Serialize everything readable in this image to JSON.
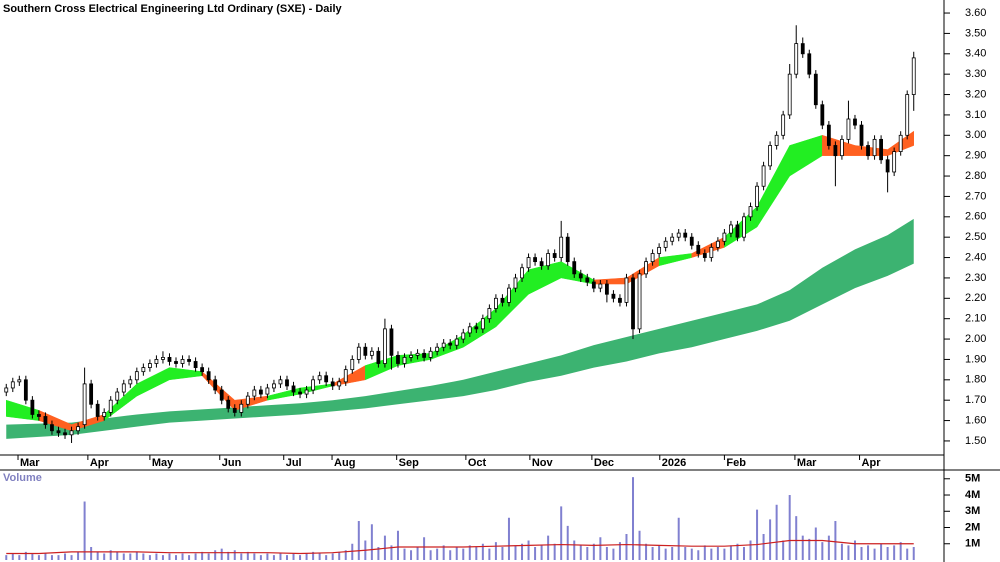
{
  "chart_data": {
    "type": "candlestick",
    "title": "Southern Cross Electrical Engineering Ltd Ordinary (SXE) - Daily",
    "xlim": [
      -0.5,
      139.5
    ],
    "xticks": [
      {
        "value": 1.8,
        "label": "Mar"
      },
      {
        "value": 12.5,
        "label": "Apr"
      },
      {
        "value": 22,
        "label": "May"
      },
      {
        "value": 32.7,
        "label": "Jun"
      },
      {
        "value": 42.5,
        "label": "Jul"
      },
      {
        "value": 49.9,
        "label": "Aug"
      },
      {
        "value": 59.8,
        "label": "Sep"
      },
      {
        "value": 70.4,
        "label": "Oct"
      },
      {
        "value": 80.2,
        "label": "Nov"
      },
      {
        "value": 89.7,
        "label": "Dec"
      },
      {
        "value": 100.1,
        "label": "2026"
      },
      {
        "value": 110,
        "label": "Feb"
      },
      {
        "value": 120.8,
        "label": "Mar"
      },
      {
        "value": 130.7,
        "label": "Apr"
      }
    ],
    "ylim": [
      1.431,
      3.664
    ],
    "yticks": [
      {
        "value": 1.5,
        "label": "1.50"
      },
      {
        "value": 1.6,
        "label": "1.60"
      },
      {
        "value": 1.7,
        "label": "1.70"
      },
      {
        "value": 1.8,
        "label": "1.80"
      },
      {
        "value": 1.9,
        "label": "1.90"
      },
      {
        "value": 2.0,
        "label": "2.00"
      },
      {
        "value": 2.1,
        "label": "2.10"
      },
      {
        "value": 2.2,
        "label": "2.20"
      },
      {
        "value": 2.3,
        "label": "2.30"
      },
      {
        "value": 2.4,
        "label": "2.40"
      },
      {
        "value": 2.5,
        "label": "2.50"
      },
      {
        "value": 2.6,
        "label": "2.60"
      },
      {
        "value": 2.7,
        "label": "2.70"
      },
      {
        "value": 2.8,
        "label": "2.80"
      },
      {
        "value": 2.9,
        "label": "2.90"
      },
      {
        "value": 3.0,
        "label": "3.00"
      },
      {
        "value": 3.1,
        "label": "3.10"
      },
      {
        "value": 3.2,
        "label": "3.20"
      },
      {
        "value": 3.3,
        "label": "3.30"
      },
      {
        "value": 3.4,
        "label": "3.40"
      },
      {
        "value": 3.5,
        "label": "3.50"
      },
      {
        "value": 3.6,
        "label": "3.60"
      }
    ],
    "up_color": "#ffffff",
    "down_color": "#000000",
    "candles": {
      "open": [
        1.74,
        1.76,
        1.79,
        1.8,
        1.7,
        1.63,
        1.62,
        1.58,
        1.55,
        1.54,
        1.53,
        1.55,
        1.58,
        1.78,
        1.68,
        1.62,
        1.64,
        1.7,
        1.74,
        1.78,
        1.8,
        1.84,
        1.86,
        1.88,
        1.9,
        1.91,
        1.89,
        1.88,
        1.9,
        1.89,
        1.86,
        1.84,
        1.8,
        1.75,
        1.7,
        1.66,
        1.64,
        1.68,
        1.72,
        1.75,
        1.73,
        1.76,
        1.78,
        1.8,
        1.77,
        1.74,
        1.73,
        1.75,
        1.8,
        1.82,
        1.79,
        1.77,
        1.79,
        1.85,
        1.9,
        1.96,
        1.92,
        1.94,
        1.88,
        2.05,
        1.92,
        1.88,
        1.91,
        1.92,
        1.93,
        1.91,
        1.94,
        1.96,
        1.98,
        1.97,
        2.0,
        2.03,
        2.06,
        2.05,
        2.1,
        2.15,
        2.2,
        2.18,
        2.25,
        2.3,
        2.35,
        2.4,
        2.38,
        2.36,
        2.42,
        2.4,
        2.5,
        2.38,
        2.32,
        2.3,
        2.28,
        2.25,
        2.27,
        2.22,
        2.2,
        2.18,
        2.3,
        2.05,
        2.32,
        2.38,
        2.42,
        2.45,
        2.48,
        2.5,
        2.52,
        2.5,
        2.46,
        2.42,
        2.4,
        2.45,
        2.48,
        2.52,
        2.56,
        2.5,
        2.6,
        2.65,
        2.75,
        2.85,
        2.95,
        3.0,
        3.1,
        3.3,
        3.45,
        3.4,
        3.3,
        3.15,
        3.05,
        2.95,
        2.9,
        2.98,
        3.08,
        3.05,
        2.95,
        2.9,
        2.98,
        2.88,
        2.82,
        2.92,
        3.0,
        3.2
      ],
      "high": [
        1.78,
        1.81,
        1.82,
        1.82,
        1.72,
        1.65,
        1.64,
        1.6,
        1.57,
        1.56,
        1.57,
        1.59,
        1.86,
        1.8,
        1.7,
        1.66,
        1.72,
        1.76,
        1.8,
        1.82,
        1.86,
        1.88,
        1.9,
        1.92,
        1.94,
        1.93,
        1.91,
        1.92,
        1.92,
        1.91,
        1.88,
        1.86,
        1.82,
        1.77,
        1.72,
        1.68,
        1.7,
        1.74,
        1.77,
        1.77,
        1.78,
        1.8,
        1.82,
        1.82,
        1.79,
        1.76,
        1.77,
        1.82,
        1.84,
        1.84,
        1.81,
        1.81,
        1.87,
        1.92,
        1.98,
        1.98,
        1.96,
        1.96,
        2.1,
        2.07,
        1.94,
        1.93,
        1.94,
        1.95,
        1.95,
        1.96,
        1.98,
        2.0,
        2.0,
        2.02,
        2.05,
        2.08,
        2.08,
        2.12,
        2.17,
        2.22,
        2.22,
        2.27,
        2.32,
        2.37,
        2.42,
        2.42,
        2.4,
        2.44,
        2.44,
        2.58,
        2.52,
        2.4,
        2.34,
        2.32,
        2.3,
        2.29,
        2.29,
        2.24,
        2.22,
        2.32,
        2.32,
        2.34,
        2.4,
        2.44,
        2.47,
        2.5,
        2.52,
        2.54,
        2.54,
        2.52,
        2.48,
        2.44,
        2.47,
        2.5,
        2.54,
        2.58,
        2.58,
        2.62,
        2.67,
        2.77,
        2.87,
        2.97,
        3.02,
        3.12,
        3.35,
        3.54,
        3.48,
        3.42,
        3.32,
        3.17,
        3.07,
        2.97,
        3.0,
        3.17,
        3.1,
        3.07,
        2.97,
        3.0,
        3.0,
        2.9,
        2.94,
        3.02,
        3.22,
        3.41
      ],
      "low": [
        1.72,
        1.74,
        1.77,
        1.68,
        1.61,
        1.6,
        1.56,
        1.53,
        1.52,
        1.51,
        1.49,
        1.53,
        1.56,
        1.66,
        1.6,
        1.6,
        1.62,
        1.68,
        1.72,
        1.76,
        1.78,
        1.82,
        1.84,
        1.86,
        1.88,
        1.87,
        1.86,
        1.86,
        1.87,
        1.84,
        1.82,
        1.78,
        1.73,
        1.68,
        1.64,
        1.62,
        1.62,
        1.66,
        1.7,
        1.71,
        1.71,
        1.74,
        1.76,
        1.75,
        1.72,
        1.71,
        1.71,
        1.73,
        1.78,
        1.77,
        1.75,
        1.75,
        1.77,
        1.83,
        1.88,
        1.9,
        1.9,
        1.86,
        1.86,
        1.85,
        1.86,
        1.86,
        1.89,
        1.9,
        1.89,
        1.89,
        1.92,
        1.94,
        1.95,
        1.95,
        1.98,
        2.01,
        2.03,
        2.03,
        2.08,
        2.13,
        2.16,
        2.16,
        2.23,
        2.28,
        2.33,
        2.36,
        2.34,
        2.34,
        2.38,
        2.38,
        2.36,
        2.3,
        2.28,
        2.26,
        2.23,
        2.23,
        2.18,
        2.18,
        2.16,
        2.16,
        2.0,
        2.03,
        2.3,
        2.36,
        2.4,
        2.43,
        2.46,
        2.48,
        2.48,
        2.44,
        2.4,
        2.38,
        2.38,
        2.43,
        2.46,
        2.5,
        2.48,
        2.48,
        2.58,
        2.63,
        2.73,
        2.83,
        2.93,
        2.98,
        3.08,
        3.28,
        3.38,
        3.28,
        3.13,
        3.03,
        2.93,
        2.75,
        2.88,
        2.96,
        3.03,
        2.93,
        2.88,
        2.88,
        2.86,
        2.72,
        2.8,
        2.9,
        2.98,
        3.12
      ],
      "close": [
        1.76,
        1.79,
        1.8,
        1.7,
        1.63,
        1.62,
        1.58,
        1.55,
        1.54,
        1.53,
        1.55,
        1.57,
        1.78,
        1.68,
        1.62,
        1.64,
        1.7,
        1.74,
        1.78,
        1.8,
        1.84,
        1.86,
        1.88,
        1.9,
        1.91,
        1.89,
        1.88,
        1.9,
        1.89,
        1.86,
        1.84,
        1.8,
        1.75,
        1.7,
        1.66,
        1.64,
        1.68,
        1.72,
        1.75,
        1.73,
        1.76,
        1.78,
        1.8,
        1.77,
        1.74,
        1.73,
        1.75,
        1.8,
        1.82,
        1.79,
        1.77,
        1.79,
        1.85,
        1.9,
        1.96,
        1.92,
        1.94,
        1.88,
        2.05,
        1.92,
        1.88,
        1.91,
        1.92,
        1.93,
        1.91,
        1.94,
        1.96,
        1.98,
        1.97,
        2.0,
        2.03,
        2.06,
        2.05,
        2.1,
        2.15,
        2.2,
        2.18,
        2.25,
        2.3,
        2.35,
        2.4,
        2.38,
        2.36,
        2.42,
        2.4,
        2.5,
        2.38,
        2.32,
        2.3,
        2.28,
        2.25,
        2.27,
        2.22,
        2.2,
        2.18,
        2.3,
        2.05,
        2.32,
        2.38,
        2.42,
        2.45,
        2.48,
        2.5,
        2.52,
        2.5,
        2.46,
        2.42,
        2.4,
        2.45,
        2.48,
        2.52,
        2.56,
        2.5,
        2.6,
        2.65,
        2.75,
        2.85,
        2.95,
        3.0,
        3.1,
        3.3,
        3.45,
        3.4,
        3.3,
        3.15,
        3.05,
        2.95,
        2.9,
        2.98,
        3.08,
        3.05,
        2.95,
        2.9,
        2.98,
        2.88,
        2.82,
        2.92,
        3.0,
        3.2,
        3.38
      ]
    },
    "band_x": [
      0,
      5,
      10,
      15,
      20,
      25,
      30,
      35,
      40,
      45,
      50,
      55,
      60,
      65,
      70,
      75,
      80,
      85,
      90,
      95,
      100,
      105,
      110,
      115,
      120,
      125,
      130,
      135,
      139
    ],
    "short_band": {
      "upper": [
        1.7,
        1.65,
        1.58,
        1.63,
        1.78,
        1.86,
        1.84,
        1.7,
        1.72,
        1.76,
        1.78,
        1.87,
        1.92,
        1.93,
        2.02,
        2.15,
        2.34,
        2.38,
        2.29,
        2.3,
        2.4,
        2.42,
        2.5,
        2.65,
        2.95,
        3.0,
        2.95,
        2.93,
        3.02
      ],
      "lower": [
        1.62,
        1.6,
        1.55,
        1.6,
        1.72,
        1.8,
        1.82,
        1.65,
        1.7,
        1.73,
        1.77,
        1.8,
        1.87,
        1.9,
        1.96,
        2.06,
        2.22,
        2.3,
        2.27,
        2.27,
        2.36,
        2.4,
        2.45,
        2.55,
        2.8,
        2.9,
        2.9,
        2.9,
        2.95
      ],
      "colors": [
        "#22ee22",
        "#ff6020",
        "#ff6020",
        "#22ee22",
        "#22ee22",
        "#22ee22",
        "#ff6020",
        "#ff6020",
        "#22ee22",
        "#22ee22",
        "#ff6020",
        "#22ee22",
        "#22ee22",
        "#22ee22",
        "#22ee22",
        "#22ee22",
        "#22ee22",
        "#22ee22",
        "#ff6020",
        "#ff6020",
        "#22ee22",
        "#ff6020",
        "#22ee22",
        "#22ee22",
        "#22ee22",
        "#ff6020",
        "#ff6020",
        "#ff6020",
        "#22ee22"
      ]
    },
    "long_band": {
      "upper": [
        1.58,
        1.585,
        1.59,
        1.61,
        1.63,
        1.645,
        1.655,
        1.665,
        1.675,
        1.685,
        1.7,
        1.72,
        1.745,
        1.77,
        1.8,
        1.84,
        1.88,
        1.92,
        1.97,
        2.01,
        2.05,
        2.09,
        2.13,
        2.17,
        2.24,
        2.35,
        2.44,
        2.51,
        2.59
      ],
      "lower": [
        1.51,
        1.52,
        1.53,
        1.55,
        1.57,
        1.59,
        1.6,
        1.61,
        1.62,
        1.63,
        1.645,
        1.66,
        1.68,
        1.7,
        1.72,
        1.75,
        1.79,
        1.82,
        1.86,
        1.89,
        1.93,
        1.96,
        2.0,
        2.04,
        2.09,
        2.17,
        2.25,
        2.31,
        2.37
      ],
      "color": "#3cb371"
    },
    "volume": {
      "label": "Volume",
      "color": "#8080d0",
      "ylim": [
        0,
        5.54
      ],
      "yticks": [
        {
          "value": 1,
          "label": "1M"
        },
        {
          "value": 2,
          "label": "2M"
        },
        {
          "value": 3,
          "label": "3M"
        },
        {
          "value": 4,
          "label": "4M"
        },
        {
          "value": 5,
          "label": "5M"
        }
      ],
      "values": [
        0.3,
        0.4,
        0.3,
        0.5,
        0.4,
        0.3,
        0.4,
        0.3,
        0.3,
        0.4,
        0.3,
        0.5,
        3.6,
        0.8,
        0.5,
        0.4,
        0.6,
        0.5,
        0.4,
        0.4,
        0.5,
        0.4,
        0.3,
        0.4,
        0.3,
        0.4,
        0.3,
        0.4,
        0.3,
        0.4,
        0.5,
        0.4,
        0.6,
        0.7,
        0.5,
        0.6,
        0.4,
        0.5,
        0.4,
        0.3,
        0.4,
        0.3,
        0.4,
        0.3,
        0.4,
        0.3,
        0.4,
        0.5,
        0.4,
        0.3,
        0.4,
        0.5,
        0.6,
        1.0,
        2.4,
        1.2,
        2.2,
        0.8,
        1.5,
        0.9,
        1.8,
        0.7,
        0.6,
        0.8,
        1.4,
        0.6,
        0.7,
        0.9,
        0.6,
        0.8,
        0.7,
        0.9,
        0.8,
        1.0,
        0.7,
        1.1,
        0.8,
        2.6,
        0.9,
        1.0,
        1.2,
        0.8,
        0.9,
        1.5,
        1.0,
        3.3,
        2.1,
        1.2,
        0.9,
        0.8,
        1.0,
        1.4,
        0.8,
        0.7,
        1.1,
        1.6,
        5.1,
        1.8,
        1.0,
        0.8,
        0.9,
        0.7,
        0.8,
        2.6,
        0.8,
        0.7,
        0.6,
        0.9,
        0.7,
        0.8,
        0.7,
        0.9,
        1.0,
        0.8,
        1.2,
        3.1,
        1.6,
        2.5,
        3.4,
        1.2,
        4.0,
        2.7,
        1.5,
        1.3,
        2.0,
        1.1,
        1.5,
        2.4,
        1.0,
        0.9,
        1.2,
        0.8,
        0.9,
        0.7,
        1.0,
        0.8,
        0.9,
        1.1,
        0.7,
        0.8
      ],
      "ma": {
        "color": "#cc2020",
        "values": [
          0.4,
          0.4,
          0.5,
          0.5,
          0.5,
          0.45,
          0.45,
          0.45,
          0.45,
          0.4,
          0.45,
          0.6,
          0.8,
          0.8,
          0.8,
          0.85,
          0.9,
          0.95,
          0.9,
          0.95,
          0.9,
          0.85,
          0.85,
          0.95,
          1.2,
          1.2,
          1.0,
          1.0,
          1.0
        ]
      }
    }
  }
}
